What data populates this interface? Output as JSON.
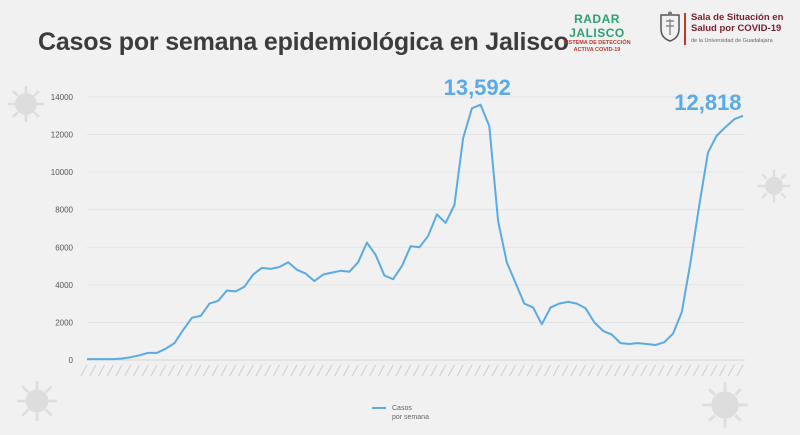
{
  "title": "Casos por semana epidemiológica en Jalisco",
  "logos": {
    "radar_name": "RADAR JALISCO",
    "radar_sub1": "SISTEMA DE DETECCIÓN",
    "radar_sub2": "ACTIVA COVID-19",
    "sala_line1": "Sala de Situación en",
    "sala_line2": "Salud por COVID-19",
    "sala_line3": "de la Universidad de Guadalajara"
  },
  "colors": {
    "series": "#5aaae6",
    "title": "#3c3c3c",
    "background": "#f1f1f1"
  },
  "chart_data": {
    "type": "line",
    "title": "Casos por semana epidemiológica en Jalisco",
    "ylim": [
      0,
      14000
    ],
    "yticks": [
      0,
      2000,
      4000,
      6000,
      8000,
      10000,
      12000,
      14000
    ],
    "ytick_labels": [
      "0",
      "2000",
      "4000",
      "6000",
      "8000",
      "10000",
      "12000",
      "14000"
    ],
    "grid": true,
    "legend_position": "bottom-center",
    "series": [
      {
        "name": "Casos por semana",
        "legend_line1": "Casos",
        "legend_line2": "por semana",
        "values": [
          50,
          50,
          50,
          50,
          80,
          150,
          250,
          380,
          380,
          600,
          900,
          1600,
          2250,
          2350,
          3000,
          3150,
          3700,
          3650,
          3900,
          4550,
          4900,
          4850,
          4950,
          5200,
          4800,
          4600,
          4200,
          4550,
          4650,
          4750,
          4700,
          5200,
          6250,
          5600,
          4500,
          4300,
          5000,
          6050,
          6000,
          6600,
          7750,
          7300,
          8250,
          11800,
          13400,
          13592,
          12450,
          7400,
          5200,
          4100,
          3000,
          2800,
          1900,
          2800,
          3000,
          3100,
          3000,
          2750,
          2000,
          1550,
          1350,
          900,
          850,
          900,
          850,
          800,
          950,
          1400,
          2550,
          5200,
          8250,
          11050,
          11950,
          12400,
          12818,
          13000
        ]
      }
    ],
    "annotations": [
      {
        "label": "13,592",
        "value": 13592
      },
      {
        "label": "12,818",
        "value": 12818
      }
    ]
  }
}
